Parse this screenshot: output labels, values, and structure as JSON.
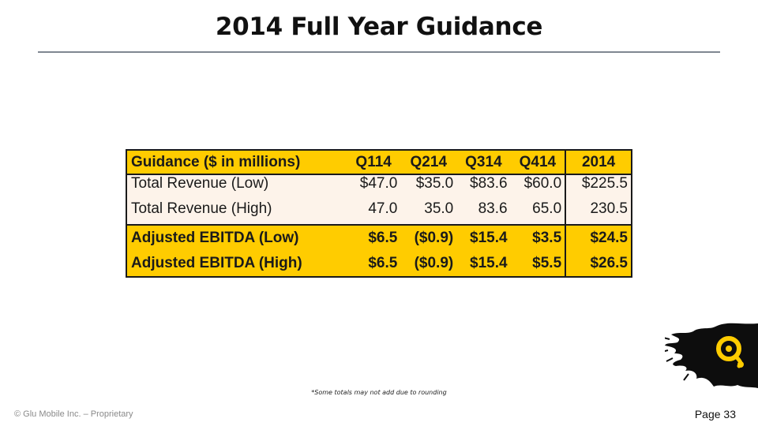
{
  "slide": {
    "title": "2014 Full Year Guidance",
    "footnote": "*Some totals may not add due to rounding",
    "copyright": "© Glu Mobile Inc. – Proprietary",
    "page": "Page 33"
  },
  "table": {
    "headers": [
      "Guidance ($ in millions)",
      "Q114",
      "Q214",
      "Q314",
      "Q414",
      "2014"
    ],
    "rows": [
      [
        "Total Revenue (Low)",
        "$47.0",
        "$35.0",
        "$83.6",
        "$60.0",
        "$225.5"
      ],
      [
        "Total Revenue (High)",
        "47.0",
        "35.0",
        "83.6",
        "65.0",
        "230.5"
      ],
      [
        "Adjusted EBITDA (Low)",
        "$6.5",
        "($0.9)",
        "$15.4",
        "$3.5",
        "$24.5"
      ],
      [
        "Adjusted EBITDA (High)",
        "$6.5",
        "($0.9)",
        "$15.4",
        "$5.5",
        "$26.5"
      ]
    ]
  },
  "colors": {
    "header_fill": "#ffcc00",
    "revenue_fill": "#fdf3ea",
    "ebitda_fill": "#ffcc00",
    "logo_mark": "#ffcc00"
  },
  "logo": {
    "icon": "glu-logo-icon"
  }
}
